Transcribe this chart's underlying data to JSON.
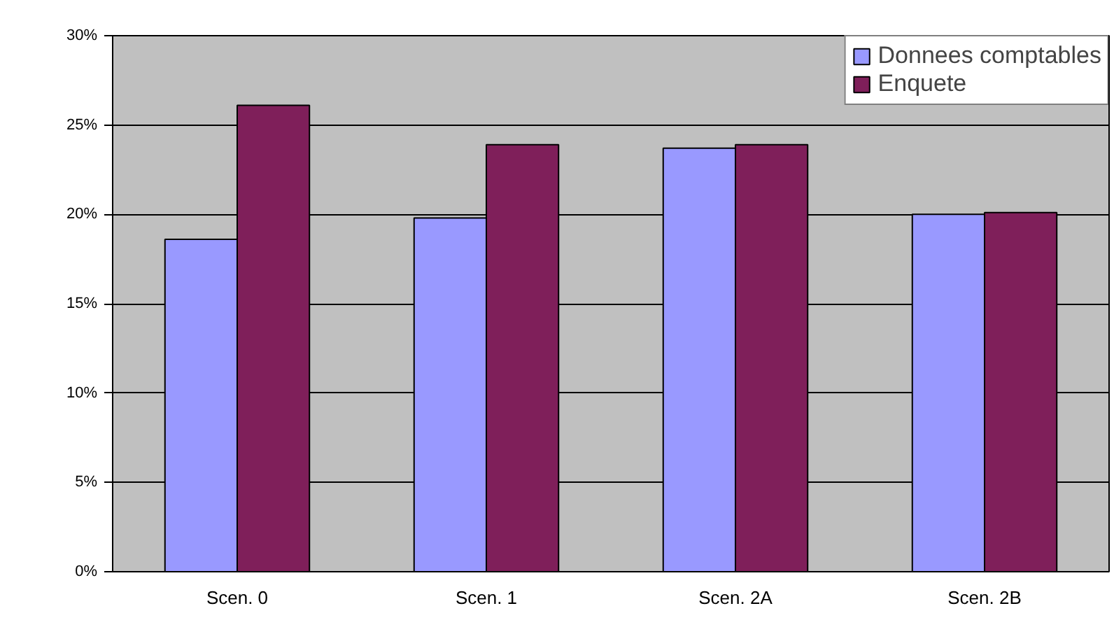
{
  "chart_data": {
    "type": "bar",
    "categories": [
      "Scen. 0",
      "Scen. 1",
      "Scen. 2A",
      "Scen. 2B"
    ],
    "series": [
      {
        "name": "Donnees comptables",
        "color": "#9999ff",
        "values": [
          18.6,
          19.8,
          23.7,
          20.0
        ]
      },
      {
        "name": "Enquete",
        "color": "#7f1f5a",
        "values": [
          26.1,
          23.9,
          23.9,
          20.1
        ]
      }
    ],
    "ylim": [
      0,
      30
    ],
    "yticks": [
      {
        "value": 0,
        "label": "0%"
      },
      {
        "value": 5,
        "label": "5%"
      },
      {
        "value": 10,
        "label": "10%"
      },
      {
        "value": 15,
        "label": "15%"
      },
      {
        "value": 20,
        "label": "20%"
      },
      {
        "value": 25,
        "label": "25%"
      },
      {
        "value": 30,
        "label": "30%"
      }
    ],
    "grid": "y",
    "legend": "top right"
  }
}
